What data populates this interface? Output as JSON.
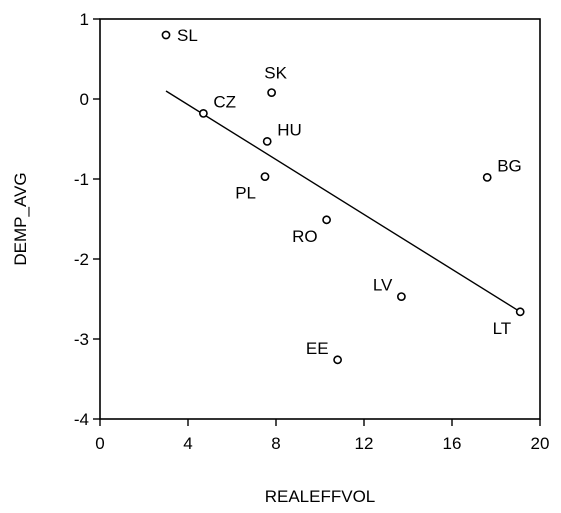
{
  "chart_data": {
    "type": "scatter",
    "xlabel": "REALEFFVOL",
    "ylabel": "DEMP_AVG",
    "xlim": [
      0,
      20
    ],
    "ylim": [
      -4,
      1
    ],
    "xticks": [
      "0",
      "4",
      "8",
      "12",
      "16",
      "20"
    ],
    "yticks": [
      "1",
      "0",
      "-1",
      "-2",
      "-3",
      "-4"
    ],
    "points": [
      {
        "label": "SL",
        "x": 3.0,
        "y": 0.8,
        "label_side": "right"
      },
      {
        "label": "CZ",
        "x": 4.7,
        "y": -0.18,
        "label_side": "upper-right"
      },
      {
        "label": "SK",
        "x": 7.8,
        "y": 0.08,
        "label_side": "above"
      },
      {
        "label": "HU",
        "x": 7.6,
        "y": -0.53,
        "label_side": "upper-right"
      },
      {
        "label": "PL",
        "x": 7.5,
        "y": -0.97,
        "label_side": "lower-left"
      },
      {
        "label": "RO",
        "x": 10.3,
        "y": -1.51,
        "label_side": "lower-left"
      },
      {
        "label": "BG",
        "x": 17.6,
        "y": -0.98,
        "label_side": "upper-right"
      },
      {
        "label": "LV",
        "x": 13.7,
        "y": -2.47,
        "label_side": "upper-left"
      },
      {
        "label": "LT",
        "x": 19.1,
        "y": -2.66,
        "label_side": "lower-left"
      },
      {
        "label": "EE",
        "x": 10.8,
        "y": -3.26,
        "label_side": "upper-left"
      }
    ],
    "fit_line": {
      "x": [
        3.0,
        19.1
      ],
      "y": [
        0.1,
        -2.66
      ]
    }
  }
}
